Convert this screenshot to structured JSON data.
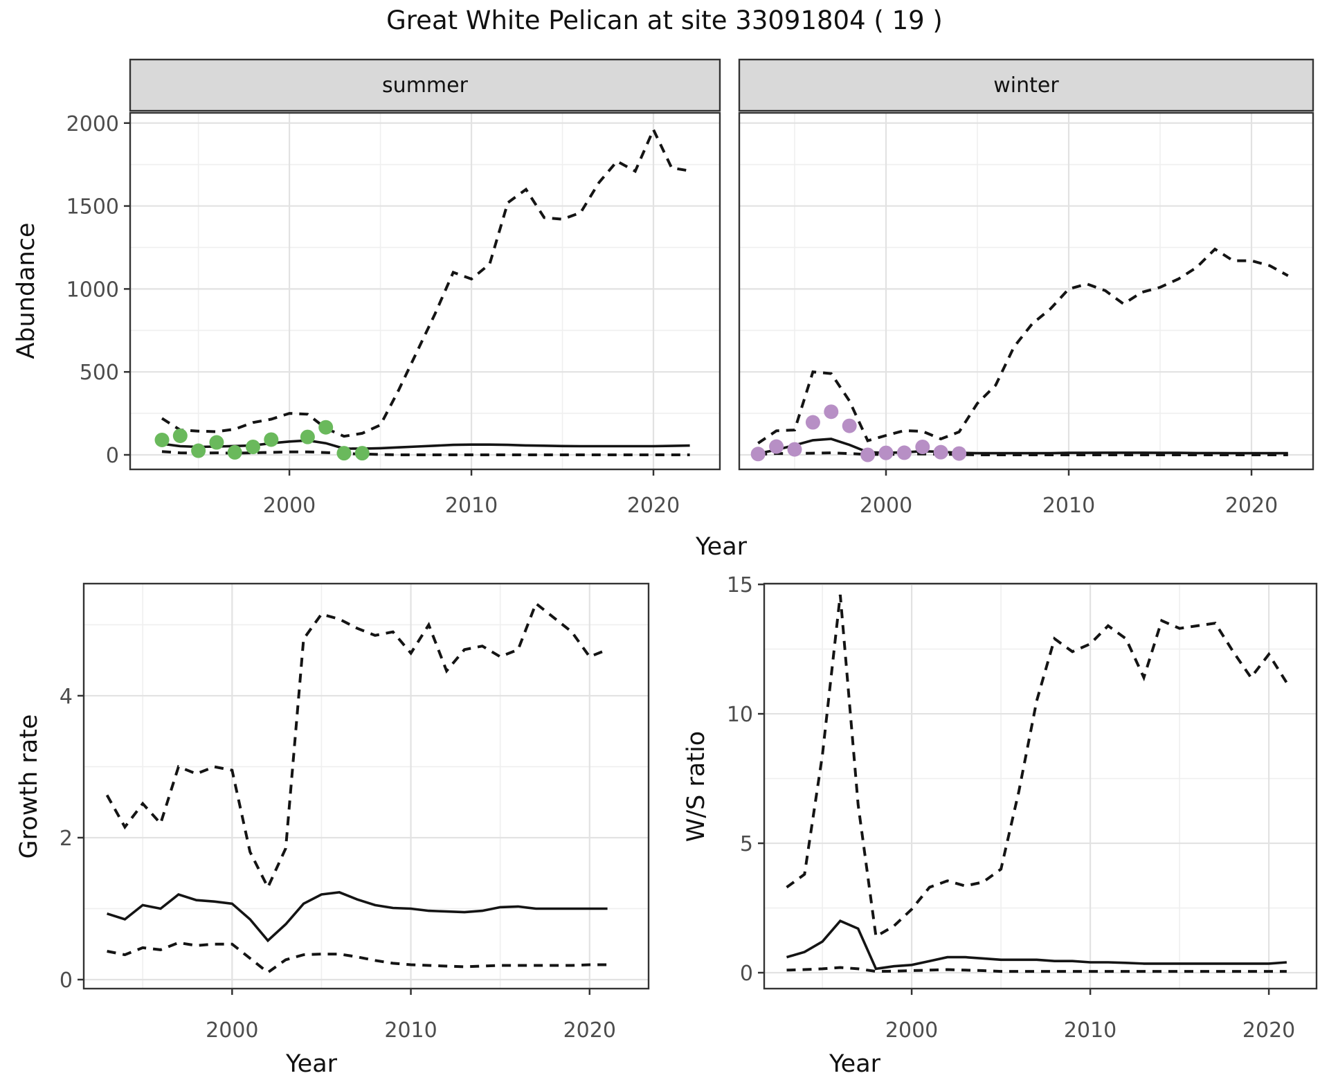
{
  "title": "Great White Pelican at site 33091804 ( 19 )",
  "facets": {
    "summer": "summer",
    "winter": "winter"
  },
  "axis": {
    "abundance_label": "Abundance",
    "growth_label": "Growth rate",
    "ws_label": "W/S ratio",
    "year_label": "Year",
    "abundance_ticks": [
      "0",
      "500",
      "1000",
      "1500",
      "2000"
    ],
    "growth_ticks": [
      "0",
      "2",
      "4"
    ],
    "ws_ticks": [
      "0",
      "5",
      "10",
      "15"
    ],
    "year_ticks": [
      "2000",
      "2010",
      "2020"
    ]
  },
  "colors": {
    "summer_points": "#6ab95c",
    "winter_points": "#b78fc5",
    "line": "#141414",
    "strip_bg": "#d9d9d9",
    "grid_major": "#e2e2e2",
    "grid_minor": "#efefef",
    "panel_border": "#333333",
    "tick_text": "#4d4d4d"
  },
  "chart_data": [
    {
      "id": "abundance-summer",
      "type": "line",
      "facet_label": "summer",
      "xlabel": "Year",
      "ylabel": "Abundance",
      "xlim": [
        1991.25,
        2023.65
      ],
      "ylim": [
        -87.6,
        2061.6
      ],
      "xticks": [
        2000,
        2010,
        2020
      ],
      "yticks": [
        0,
        500,
        1000,
        1500,
        2000
      ],
      "x_minor": [
        1995,
        2005,
        2015
      ],
      "y_minor": [
        250,
        750,
        1250,
        1750
      ],
      "series": [
        {
          "name": "lower-95-ci",
          "style": "dashed",
          "x": [
            1993,
            1994,
            1995,
            1996,
            1997,
            1998,
            1999,
            2000,
            2001,
            2002,
            2003,
            2004,
            2005,
            2006,
            2007,
            2008,
            2009,
            2010,
            2011,
            2012,
            2013,
            2014,
            2015,
            2016,
            2017,
            2018,
            2019,
            2020,
            2021,
            2022
          ],
          "y": [
            20,
            12,
            10,
            12,
            10,
            12,
            15,
            18,
            18,
            14,
            8,
            5,
            2,
            0,
            0,
            0,
            0,
            0,
            0,
            0,
            0,
            0,
            0,
            0,
            0,
            0,
            0,
            0,
            0,
            0
          ]
        },
        {
          "name": "upper-95-ci",
          "style": "dashed",
          "x": [
            1993,
            1994,
            1995,
            1996,
            1997,
            1998,
            1999,
            2000,
            2001,
            2002,
            2003,
            2004,
            2005,
            2006,
            2007,
            2008,
            2009,
            2010,
            2011,
            2012,
            2013,
            2014,
            2015,
            2016,
            2017,
            2018,
            2019,
            2020,
            2021,
            2022
          ],
          "y": [
            220,
            150,
            143,
            140,
            155,
            195,
            215,
            250,
            245,
            160,
            112,
            130,
            180,
            390,
            620,
            850,
            1100,
            1060,
            1150,
            1520,
            1600,
            1430,
            1420,
            1460,
            1640,
            1770,
            1710,
            1960,
            1730,
            1712
          ]
        },
        {
          "name": "median",
          "style": "solid",
          "x": [
            1993,
            1994,
            1995,
            1996,
            1997,
            1998,
            1999,
            2000,
            2001,
            2002,
            2003,
            2004,
            2005,
            2006,
            2007,
            2008,
            2009,
            2010,
            2011,
            2012,
            2013,
            2014,
            2015,
            2016,
            2017,
            2018,
            2019,
            2020,
            2021,
            2022
          ],
          "y": [
            67,
            52,
            48,
            50,
            53,
            57,
            70,
            80,
            87,
            70,
            38,
            37,
            40,
            45,
            50,
            55,
            60,
            62,
            62,
            60,
            57,
            55,
            53,
            52,
            52,
            52,
            52,
            52,
            54,
            56
          ]
        },
        {
          "name": "observed-counts",
          "style": "points",
          "color": "#6ab95c",
          "x": [
            1993,
            1994,
            1995,
            1996,
            1997,
            1998,
            1999,
            2001,
            2002,
            2003,
            2004
          ],
          "y": [
            90,
            115,
            25,
            75,
            15,
            48,
            92,
            108,
            166,
            10,
            10
          ]
        }
      ]
    },
    {
      "id": "abundance-winter",
      "type": "line",
      "facet_label": "winter",
      "xlabel": "Year",
      "ylabel": "Abundance",
      "xlim": [
        1991.97,
        2023.37
      ],
      "ylim": [
        -87.6,
        2061.6
      ],
      "xticks": [
        2000,
        2010,
        2020
      ],
      "yticks": [
        0,
        500,
        1000,
        1500,
        2000
      ],
      "x_minor": [
        1995,
        2005,
        2015
      ],
      "y_minor": [
        250,
        750,
        1250,
        1750
      ],
      "series": [
        {
          "name": "lower-95-ci",
          "style": "dashed",
          "x": [
            1993,
            1994,
            1995,
            1996,
            1997,
            1998,
            1999,
            2000,
            2001,
            2002,
            2003,
            2004,
            2005,
            2006,
            2007,
            2008,
            2009,
            2010,
            2011,
            2012,
            2013,
            2014,
            2015,
            2016,
            2017,
            2018,
            2019,
            2020,
            2021,
            2022
          ],
          "y": [
            2,
            8,
            8,
            10,
            12,
            8,
            2,
            3,
            4,
            6,
            4,
            2,
            0,
            0,
            0,
            0,
            0,
            0,
            0,
            0,
            0,
            0,
            0,
            0,
            0,
            0,
            0,
            0,
            0,
            0
          ]
        },
        {
          "name": "upper-95-ci",
          "style": "dashed",
          "x": [
            1993,
            1994,
            1995,
            1996,
            1997,
            1998,
            1999,
            2000,
            2001,
            2002,
            2003,
            2004,
            2005,
            2006,
            2007,
            2008,
            2009,
            2010,
            2011,
            2012,
            2013,
            2014,
            2015,
            2016,
            2017,
            2018,
            2019,
            2020,
            2021,
            2022
          ],
          "y": [
            70,
            145,
            150,
            500,
            490,
            325,
            85,
            117,
            146,
            142,
            96,
            138,
            310,
            420,
            650,
            790,
            880,
            1000,
            1030,
            990,
            910,
            980,
            1010,
            1060,
            1130,
            1240,
            1170,
            1170,
            1140,
            1080
          ]
        },
        {
          "name": "median",
          "style": "solid",
          "x": [
            1993,
            1994,
            1995,
            1996,
            1997,
            1998,
            1999,
            2000,
            2001,
            2002,
            2003,
            2004,
            2005,
            2006,
            2007,
            2008,
            2009,
            2010,
            2011,
            2012,
            2013,
            2014,
            2015,
            2016,
            2017,
            2018,
            2019,
            2020,
            2021,
            2022
          ],
          "y": [
            8,
            30,
            58,
            88,
            96,
            60,
            16,
            12,
            15,
            22,
            18,
            12,
            10,
            10,
            10,
            10,
            10,
            12,
            12,
            13,
            13,
            13,
            12,
            12,
            11,
            11,
            10,
            10,
            10,
            10
          ]
        },
        {
          "name": "observed-counts",
          "style": "points",
          "color": "#b78fc5",
          "x": [
            1993,
            1994,
            1995,
            1996,
            1997,
            1998,
            1999,
            2000,
            2001,
            2002,
            2003,
            2004
          ],
          "y": [
            5,
            50,
            33,
            196,
            260,
            175,
            0,
            12,
            13,
            48,
            16,
            8
          ]
        }
      ]
    },
    {
      "id": "growth-rate",
      "type": "line",
      "facet_label": "",
      "xlabel": "Year",
      "ylabel": "Growth rate",
      "xlim": [
        1991.7,
        2023.3
      ],
      "ylim": [
        -0.127,
        5.58
      ],
      "xticks": [
        2000,
        2010,
        2020
      ],
      "yticks": [
        0,
        2,
        4
      ],
      "x_minor": [
        1995,
        2005,
        2015
      ],
      "y_minor": [
        1,
        3,
        5
      ],
      "series": [
        {
          "name": "lower-95-ci",
          "style": "dashed",
          "x": [
            1993,
            1994,
            1995,
            1996,
            1997,
            1998,
            1999,
            2000,
            2001,
            2002,
            2003,
            2004,
            2005,
            2006,
            2007,
            2008,
            2009,
            2010,
            2011,
            2012,
            2013,
            2014,
            2015,
            2016,
            2017,
            2018,
            2019,
            2020,
            2021
          ],
          "y": [
            0.4,
            0.35,
            0.45,
            0.42,
            0.52,
            0.48,
            0.5,
            0.5,
            0.3,
            0.1,
            0.28,
            0.35,
            0.36,
            0.36,
            0.32,
            0.27,
            0.23,
            0.21,
            0.2,
            0.19,
            0.18,
            0.19,
            0.2,
            0.2,
            0.2,
            0.2,
            0.2,
            0.21,
            0.21
          ]
        },
        {
          "name": "upper-95-ci",
          "style": "dashed",
          "x": [
            1993,
            1994,
            1995,
            1996,
            1997,
            1998,
            1999,
            2000,
            2001,
            2002,
            2003,
            2004,
            2005,
            2006,
            2007,
            2008,
            2009,
            2010,
            2011,
            2012,
            2013,
            2014,
            2015,
            2016,
            2017,
            2018,
            2019,
            2020,
            2021
          ],
          "y": [
            2.6,
            2.15,
            2.48,
            2.2,
            3.0,
            2.9,
            3.0,
            2.95,
            1.8,
            1.3,
            1.85,
            4.8,
            5.15,
            5.08,
            4.95,
            4.85,
            4.9,
            4.6,
            5.0,
            4.35,
            4.65,
            4.7,
            4.55,
            4.65,
            5.3,
            5.1,
            4.9,
            4.55,
            4.65
          ]
        },
        {
          "name": "median",
          "style": "solid",
          "x": [
            1993,
            1994,
            1995,
            1996,
            1997,
            1998,
            1999,
            2000,
            2001,
            2002,
            2003,
            2004,
            2005,
            2006,
            2007,
            2008,
            2009,
            2010,
            2011,
            2012,
            2013,
            2014,
            2015,
            2016,
            2017,
            2018,
            2019,
            2020,
            2021
          ],
          "y": [
            0.93,
            0.85,
            1.05,
            1.0,
            1.2,
            1.12,
            1.1,
            1.07,
            0.85,
            0.55,
            0.78,
            1.07,
            1.2,
            1.23,
            1.13,
            1.05,
            1.01,
            1.0,
            0.97,
            0.96,
            0.95,
            0.97,
            1.02,
            1.03,
            1.0,
            1.0,
            1.0,
            1.0,
            1.0
          ]
        }
      ]
    },
    {
      "id": "ws-ratio",
      "type": "line",
      "facet_label": "",
      "xlabel": "Year",
      "ylabel": "W/S ratio",
      "xlim": [
        1991.74,
        2022.67
      ],
      "ylim": [
        -0.615,
        15.03
      ],
      "xticks": [
        2000,
        2010,
        2020
      ],
      "yticks": [
        0,
        5,
        10,
        15
      ],
      "x_minor": [
        1995,
        2005,
        2015
      ],
      "y_minor": [
        2.5,
        7.5,
        12.5
      ],
      "series": [
        {
          "name": "lower-95-ci",
          "style": "dashed",
          "x": [
            1993,
            1994,
            1995,
            1996,
            1997,
            1998,
            1999,
            2000,
            2001,
            2002,
            2003,
            2004,
            2005,
            2006,
            2007,
            2008,
            2009,
            2010,
            2011,
            2012,
            2013,
            2014,
            2015,
            2016,
            2017,
            2018,
            2019,
            2020,
            2021
          ],
          "y": [
            0.1,
            0.12,
            0.15,
            0.2,
            0.15,
            0.05,
            0.06,
            0.08,
            0.1,
            0.12,
            0.1,
            0.08,
            0.05,
            0.05,
            0.05,
            0.05,
            0.05,
            0.05,
            0.05,
            0.05,
            0.05,
            0.05,
            0.05,
            0.05,
            0.05,
            0.05,
            0.05,
            0.05,
            0.05
          ]
        },
        {
          "name": "upper-95-ci",
          "style": "dashed",
          "x": [
            1993,
            1994,
            1995,
            1996,
            1997,
            1998,
            1999,
            2000,
            2001,
            2002,
            2003,
            2004,
            2005,
            2006,
            2007,
            2008,
            2009,
            2010,
            2011,
            2012,
            2013,
            2014,
            2015,
            2016,
            2017,
            2018,
            2019,
            2020,
            2021
          ],
          "y": [
            3.3,
            3.8,
            8.4,
            14.6,
            6.5,
            1.4,
            1.8,
            2.45,
            3.3,
            3.55,
            3.35,
            3.5,
            4.0,
            7.0,
            10.5,
            12.9,
            12.4,
            12.7,
            13.4,
            12.9,
            11.4,
            13.6,
            13.3,
            13.4,
            13.5,
            12.4,
            11.4,
            12.3,
            11.2
          ]
        },
        {
          "name": "median",
          "style": "solid",
          "x": [
            1993,
            1994,
            1995,
            1996,
            1997,
            1998,
            1999,
            2000,
            2001,
            2002,
            2003,
            2004,
            2005,
            2006,
            2007,
            2008,
            2009,
            2010,
            2011,
            2012,
            2013,
            2014,
            2015,
            2016,
            2017,
            2018,
            2019,
            2020,
            2021
          ],
          "y": [
            0.6,
            0.8,
            1.2,
            2.0,
            1.7,
            0.15,
            0.25,
            0.3,
            0.45,
            0.6,
            0.6,
            0.55,
            0.5,
            0.5,
            0.5,
            0.45,
            0.45,
            0.4,
            0.4,
            0.38,
            0.35,
            0.35,
            0.35,
            0.35,
            0.35,
            0.35,
            0.35,
            0.35,
            0.4
          ]
        }
      ]
    }
  ]
}
